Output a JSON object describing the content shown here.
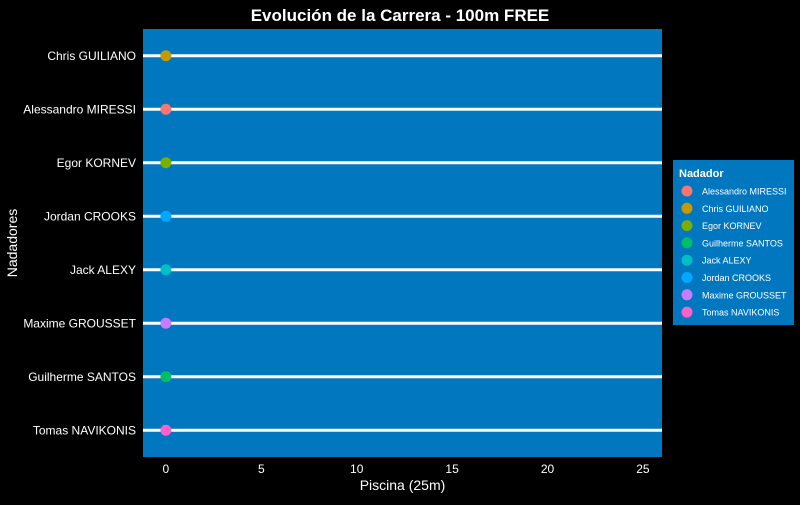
{
  "chart_data": {
    "type": "scatter",
    "title": "Evolución de la Carrera - 100m FREE",
    "xlabel": "Piscina (25m)",
    "ylabel": "Nadadores",
    "xlim": [
      -1.2,
      26
    ],
    "x_ticks": [
      0,
      5,
      10,
      15,
      20,
      25
    ],
    "categories": [
      "Chris GUILIANO",
      "Alessandro MIRESSI",
      "Egor KORNEV",
      "Jordan CROOKS",
      "Jack ALEXY",
      "Maxime GROUSSET",
      "Guilherme SANTOS",
      "Tomas NAVIKONIS"
    ],
    "series": [
      {
        "name": "Chris GUILIANO",
        "x": 0,
        "y": "Chris GUILIANO",
        "color": "#C49A00"
      },
      {
        "name": "Alessandro MIRESSI",
        "x": 0,
        "y": "Alessandro MIRESSI",
        "color": "#F8766D"
      },
      {
        "name": "Egor KORNEV",
        "x": 0,
        "y": "Egor KORNEV",
        "color": "#7CAE00"
      },
      {
        "name": "Jordan CROOKS",
        "x": 0,
        "y": "Jordan CROOKS",
        "color": "#00A9FF"
      },
      {
        "name": "Jack ALEXY",
        "x": 0,
        "y": "Jack ALEXY",
        "color": "#00BFC4"
      },
      {
        "name": "Maxime GROUSSET",
        "x": 0,
        "y": "Maxime GROUSSET",
        "color": "#C77CFF"
      },
      {
        "name": "Guilherme SANTOS",
        "x": 0,
        "y": "Guilherme SANTOS",
        "color": "#00BE67"
      },
      {
        "name": "Tomas NAVIKONIS",
        "x": 0,
        "y": "Tomas NAVIKONIS",
        "color": "#FF61CC"
      }
    ],
    "legend": {
      "title": "Nadador",
      "position": "right",
      "order": [
        "Alessandro MIRESSI",
        "Chris GUILIANO",
        "Egor KORNEV",
        "Guilherme SANTOS",
        "Jack ALEXY",
        "Jordan CROOKS",
        "Maxime GROUSSET",
        "Tomas NAVIKONIS"
      ]
    },
    "colors": {
      "background": "#000000",
      "panel": "#0077BE",
      "lane_line": "#FFFFFF",
      "text": "#FFFFFF"
    },
    "grid": false
  }
}
